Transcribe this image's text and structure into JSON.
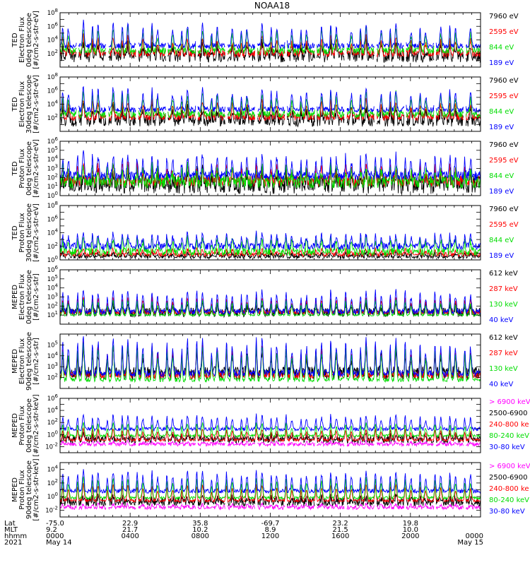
{
  "title": "NOAA18",
  "chart_data": [
    {
      "type": "line",
      "ylabel": [
        "TED",
        "Electron Flux",
        "0deg telescope",
        "[#/cm2-s-str-eV]"
      ],
      "y_ticks": [
        2,
        4,
        6,
        8
      ],
      "y_min_exp": 0,
      "y_max_exp": 8,
      "log": true,
      "series": [
        {
          "name": "7960 eV",
          "color": "#000000",
          "base": 1.6,
          "amp": 1.8,
          "noise": 0.9,
          "gap": true
        },
        {
          "name": "2595 eV",
          "color": "#ff0000",
          "base": 2.0,
          "amp": 2.3,
          "noise": 0.5,
          "gap": true
        },
        {
          "name": "844 eV",
          "color": "#00dd00",
          "base": 2.4,
          "amp": 3.2,
          "noise": 0.5,
          "gap": true
        },
        {
          "name": "189 eV",
          "color": "#0000ff",
          "base": 3.1,
          "amp": 3.2,
          "noise": 0.4,
          "gap": true
        }
      ]
    },
    {
      "type": "line",
      "ylabel": [
        "TED",
        "Electron Flux",
        "30deg telescope",
        "[#/cm2-s-str-eV]"
      ],
      "y_ticks": [
        2,
        4,
        6,
        8
      ],
      "y_min_exp": 0,
      "y_max_exp": 8,
      "log": true,
      "series": [
        {
          "name": "7960 eV",
          "color": "#000000",
          "base": 1.6,
          "amp": 1.8,
          "noise": 0.9,
          "gap": true
        },
        {
          "name": "2595 eV",
          "color": "#ff0000",
          "base": 2.1,
          "amp": 2.3,
          "noise": 0.5,
          "gap": true
        },
        {
          "name": "844 eV",
          "color": "#00dd00",
          "base": 2.5,
          "amp": 3.0,
          "noise": 0.5,
          "gap": true
        },
        {
          "name": "189 eV",
          "color": "#0000ff",
          "base": 3.2,
          "amp": 3.0,
          "noise": 0.4,
          "gap": true
        }
      ]
    },
    {
      "type": "line",
      "ylabel": [
        "TED",
        "Proton Flux",
        "0deg telescope",
        "[#/cm2-s-str-eV]"
      ],
      "y_ticks": [
        0,
        1,
        2,
        3,
        4,
        5,
        6
      ],
      "y_min_exp": 0,
      "y_max_exp": 6,
      "log": true,
      "series": [
        {
          "name": "7960 eV",
          "color": "#000000",
          "base": 1.2,
          "amp": 1.2,
          "noise": 1.0,
          "gap": false
        },
        {
          "name": "2595 eV",
          "color": "#ff0000",
          "base": 1.6,
          "amp": 1.6,
          "noise": 0.6,
          "gap": false
        },
        {
          "name": "844 eV",
          "color": "#00dd00",
          "base": 1.5,
          "amp": 1.6,
          "noise": 0.7,
          "gap": false
        },
        {
          "name": "189 eV",
          "color": "#0000ff",
          "base": 2.2,
          "amp": 2.2,
          "noise": 0.5,
          "gap": false
        }
      ]
    },
    {
      "type": "line",
      "ylabel": [
        "TED",
        "Proton Flux",
        "30deg telescope",
        "[#/cm2-s-str-eV]"
      ],
      "y_ticks": [
        0,
        2,
        4,
        6,
        8
      ],
      "y_min_exp": 0,
      "y_max_exp": 8,
      "log": true,
      "series": [
        {
          "name": "7960 eV",
          "color": "#000000",
          "base": 0.5,
          "amp": 0.5,
          "noise": 0.3,
          "gap": false
        },
        {
          "name": "2595 eV",
          "color": "#ff0000",
          "base": 0.8,
          "amp": 0.8,
          "noise": 0.3,
          "gap": false
        },
        {
          "name": "844 eV",
          "color": "#00dd00",
          "base": 1.2,
          "amp": 2.0,
          "noise": 0.6,
          "gap": false
        },
        {
          "name": "189 eV",
          "color": "#0000ff",
          "base": 2.0,
          "amp": 1.8,
          "noise": 0.5,
          "gap": false
        }
      ]
    },
    {
      "type": "line",
      "ylabel": [
        "MEPED",
        "Electron Flux",
        "0deg telescope",
        "[#/cm2-s-str]"
      ],
      "y_ticks": [
        1,
        2,
        3,
        4,
        5,
        6
      ],
      "y_min_exp": 0,
      "y_max_exp": 6,
      "log": true,
      "series": [
        {
          "name": "612 keV",
          "color": "#000000",
          "base": 1.3,
          "amp": 0.8,
          "noise": 0.5,
          "gap": false
        },
        {
          "name": "287 keV",
          "color": "#ff0000",
          "base": 1.3,
          "amp": 1.6,
          "noise": 0.2,
          "gap": false
        },
        {
          "name": "130 keV",
          "color": "#00dd00",
          "base": 1.0,
          "amp": 1.6,
          "noise": 0.1,
          "gap": false
        },
        {
          "name": "40 keV",
          "color": "#0000ff",
          "base": 1.4,
          "amp": 2.2,
          "noise": 0.3,
          "gap": false
        }
      ]
    },
    {
      "type": "line",
      "ylabel": [
        "MEPED",
        "Electron Flux",
        "90deg telescope",
        "[#/cm2-s-str]"
      ],
      "y_ticks": [
        2,
        3,
        4,
        5
      ],
      "y_min_exp": 1,
      "y_max_exp": 6,
      "log": true,
      "series": [
        {
          "name": "612 keV",
          "color": "#000000",
          "base": 2.4,
          "amp": 2.0,
          "noise": 0.6,
          "gap": false
        },
        {
          "name": "287 keV",
          "color": "#ff0000",
          "base": 2.2,
          "amp": 2.6,
          "noise": 0.3,
          "gap": false
        },
        {
          "name": "130 keV",
          "color": "#00dd00",
          "base": 1.8,
          "amp": 3.0,
          "noise": 0.2,
          "gap": false
        },
        {
          "name": "40 keV",
          "color": "#0000ff",
          "base": 2.4,
          "amp": 3.0,
          "noise": 0.3,
          "gap": false
        }
      ]
    },
    {
      "type": "line",
      "ylabel": [
        "MEPED",
        "Proton Flux",
        "0deg telescope",
        "[#/cm2-s-str-keV]"
      ],
      "y_ticks": [
        -2,
        0,
        2,
        4,
        6
      ],
      "y_min_exp": -3,
      "y_max_exp": 6,
      "log": true,
      "series": [
        {
          "name": "> 6900 keV",
          "color": "#ff00ff",
          "base": -1.6,
          "amp": 0.4,
          "noise": 0.3,
          "gap": true
        },
        {
          "name": "2500-6900",
          "color": "#000000",
          "base": -0.8,
          "amp": 0.6,
          "noise": 0.6,
          "gap": true
        },
        {
          "name": "240-800 ke",
          "color": "#ff0000",
          "base": -0.9,
          "amp": 1.8,
          "noise": 0.2,
          "gap": false
        },
        {
          "name": "80-240 keV",
          "color": "#00dd00",
          "base": -0.2,
          "amp": 2.0,
          "noise": 0.2,
          "gap": false
        },
        {
          "name": "30-80 keV",
          "color": "#0000ff",
          "base": 0.9,
          "amp": 2.2,
          "noise": 0.3,
          "gap": false
        }
      ]
    },
    {
      "type": "line",
      "ylabel": [
        "MEPED",
        "Proton Flux",
        "90deg telescope",
        "[#/cm2-s-str-keV]"
      ],
      "y_ticks": [
        -2,
        0,
        2,
        4
      ],
      "y_min_exp": -3,
      "y_max_exp": 5,
      "log": true,
      "series": [
        {
          "name": "> 6900 keV",
          "color": "#ff00ff",
          "base": -1.6,
          "amp": 0.5,
          "noise": 0.3,
          "gap": true
        },
        {
          "name": "2500-6900",
          "color": "#000000",
          "base": -0.8,
          "amp": 0.7,
          "noise": 0.6,
          "gap": true
        },
        {
          "name": "240-800 ke",
          "color": "#ff0000",
          "base": -0.6,
          "amp": 2.2,
          "noise": 0.2,
          "gap": false
        },
        {
          "name": "80-240 keV",
          "color": "#00dd00",
          "base": -0.2,
          "amp": 2.8,
          "noise": 0.2,
          "gap": false
        },
        {
          "name": "30-80 keV",
          "color": "#0000ff",
          "base": 0.8,
          "amp": 2.8,
          "noise": 0.3,
          "gap": false
        }
      ]
    }
  ],
  "x_axis": {
    "row_labels": [
      "Lat",
      "MLT",
      "hhmm",
      "2021"
    ],
    "columns": [
      {
        "hours": 0,
        "values": [
          "-75.0",
          "9.2",
          "0000",
          "May 14"
        ]
      },
      {
        "hours": 4,
        "values": [
          "22.9",
          "21.7",
          "0400",
          ""
        ]
      },
      {
        "hours": 8,
        "values": [
          "35.8",
          "10.2",
          "0800",
          ""
        ]
      },
      {
        "hours": 12,
        "values": [
          "-69.7",
          "8.9",
          "1200",
          ""
        ]
      },
      {
        "hours": 16,
        "values": [
          "23.2",
          "21.5",
          "1600",
          ""
        ]
      },
      {
        "hours": 20,
        "values": [
          "19.8",
          "10.0",
          "2000",
          ""
        ]
      },
      {
        "hours": 24,
        "values": [
          "",
          "",
          "0000",
          "May 15"
        ]
      }
    ],
    "range_hours": [
      0,
      24
    ]
  }
}
